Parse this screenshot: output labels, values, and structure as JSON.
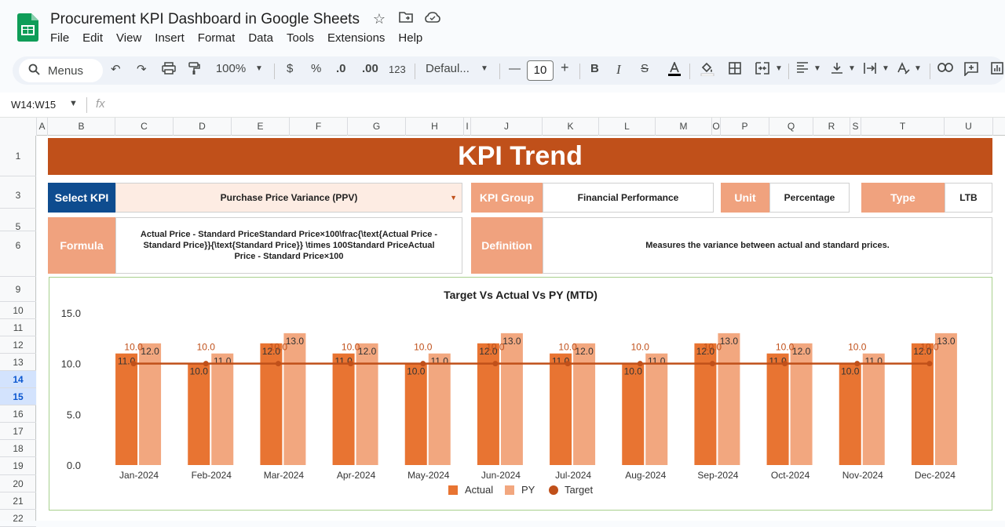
{
  "app": {
    "doc_title": "Procurement KPI Dashboard in Google Sheets",
    "menu": [
      "File",
      "Edit",
      "View",
      "Insert",
      "Format",
      "Data",
      "Tools",
      "Extensions",
      "Help"
    ]
  },
  "toolbar": {
    "menus_label": "Menus",
    "zoom": "100%",
    "currency": "$",
    "percent": "%",
    "dec_decrease": ".0",
    "dec_increase": ".00",
    "number_format": "123",
    "font": "Defaul...",
    "font_size": "10"
  },
  "formula_bar": {
    "name_box": "W14:W15",
    "fx": "fx"
  },
  "columns": [
    "A",
    "B",
    "C",
    "D",
    "E",
    "F",
    "G",
    "H",
    "I",
    "J",
    "K",
    "L",
    "M",
    "O",
    "P",
    "Q",
    "R",
    "S",
    "T",
    "U"
  ],
  "rows": [
    "1",
    "3",
    "5",
    "6",
    "9",
    "10",
    "11",
    "12",
    "13",
    "14",
    "15",
    "16",
    "17",
    "18",
    "19",
    "20",
    "21",
    "22"
  ],
  "dashboard": {
    "banner": "KPI Trend",
    "select_kpi_label": "Select KPI",
    "select_kpi_value": "Purchase Price Variance (PPV)",
    "kpi_group_label": "KPI Group",
    "kpi_group_value": "Financial Performance",
    "unit_label": "Unit",
    "unit_value": "Percentage",
    "type_label": "Type",
    "type_value": "LTB",
    "formula_label": "Formula",
    "formula_value": "Actual Price - Standard PriceStandard Price×100\\frac{\\text{Actual Price - Standard Price}}{\\text{Standard Price}} \\times 100Standard PriceActual Price - Standard Price×100",
    "definition_label": "Definition",
    "definition_value": "Measures the variance between actual and standard prices."
  },
  "colors": {
    "actual": "#e87432",
    "py": "#f2a77f",
    "target": "#c0501a",
    "banner": "#c0501a",
    "select_label": "#0e4c8f"
  },
  "chart_data": {
    "type": "bar",
    "title": "Target Vs Actual Vs PY (MTD)",
    "categories": [
      "Jan-2024",
      "Feb-2024",
      "Mar-2024",
      "Apr-2024",
      "May-2024",
      "Jun-2024",
      "Jul-2024",
      "Aug-2024",
      "Sep-2024",
      "Oct-2024",
      "Nov-2024",
      "Dec-2024"
    ],
    "series": [
      {
        "name": "Actual",
        "type": "bar",
        "values": [
          11.0,
          10.0,
          12.0,
          11.0,
          10.0,
          12.0,
          11.0,
          10.0,
          12.0,
          11.0,
          10.0,
          12.0
        ]
      },
      {
        "name": "PY",
        "type": "bar",
        "values": [
          12.0,
          11.0,
          13.0,
          12.0,
          11.0,
          13.0,
          12.0,
          11.0,
          13.0,
          12.0,
          11.0,
          13.0
        ]
      },
      {
        "name": "Target",
        "type": "line",
        "values": [
          10.0,
          10.0,
          10.0,
          10.0,
          10.0,
          10.0,
          10.0,
          10.0,
          10.0,
          10.0,
          10.0,
          10.0
        ]
      }
    ],
    "yticks": [
      "15.0",
      "10.0",
      "5.0",
      "0.0"
    ],
    "ylim": [
      0,
      15
    ],
    "legend": "bottom",
    "grid": false
  }
}
